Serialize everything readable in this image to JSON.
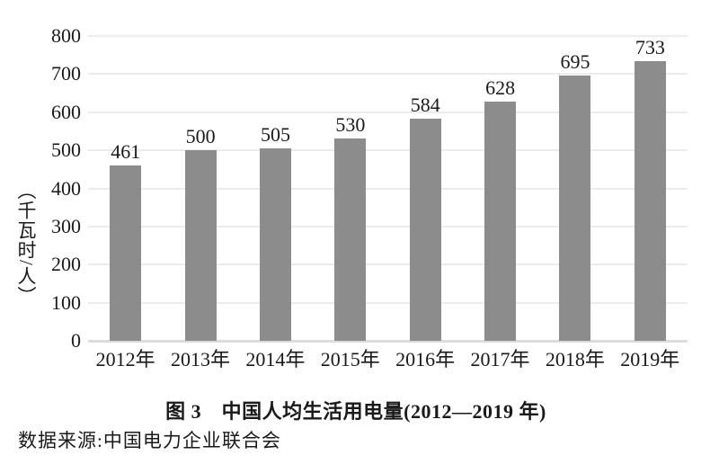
{
  "figure": {
    "title": "图 3　中国人均生活用电量(2012—2019 年)",
    "source": "数据来源:中国电力企业联合会"
  },
  "chart_data": {
    "type": "bar",
    "categories": [
      "2012年",
      "2013年",
      "2014年",
      "2015年",
      "2016年",
      "2017年",
      "2018年",
      "2019年"
    ],
    "values": [
      461,
      500,
      505,
      530,
      584,
      628,
      695,
      733
    ],
    "title": "图 3　中国人均生活用电量(2012—2019 年)",
    "xlabel": "",
    "ylabel": "（千瓦时/人）",
    "ylim": [
      0,
      800
    ],
    "ytick_step": 100,
    "yticks": [
      0,
      100,
      200,
      300,
      400,
      500,
      600,
      700,
      800
    ],
    "grid": "horizontal",
    "legend": "none",
    "bar_color": "#8c8c8c",
    "gridline_color": "#ececec",
    "axisline_color": "#dcdcdc",
    "text_color": "#1a1a1a",
    "background": "#ffffff"
  }
}
